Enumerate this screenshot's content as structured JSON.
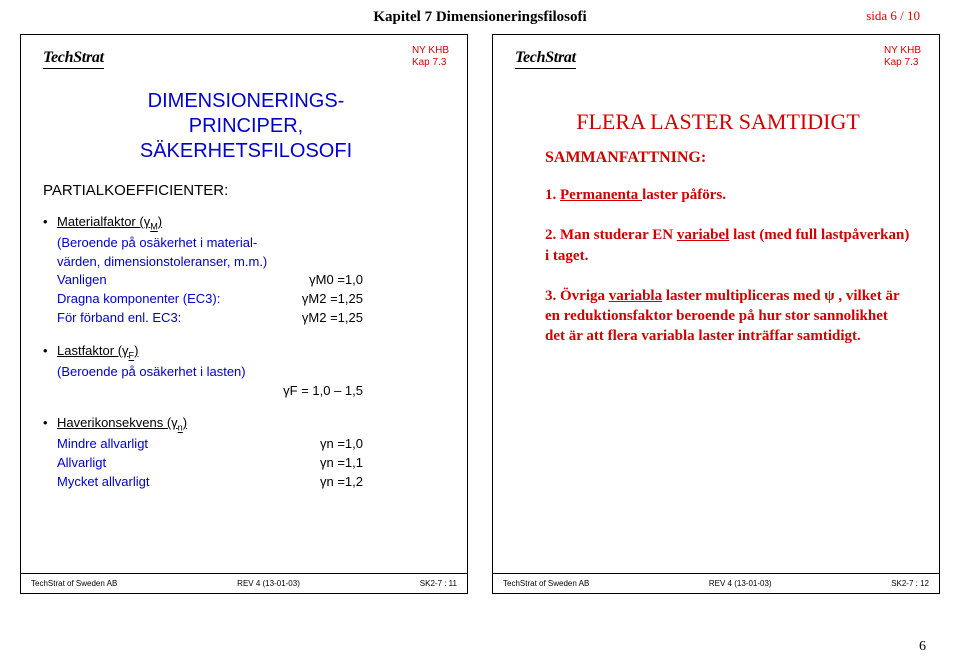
{
  "header": {
    "chapter": "Kapitel 7  Dimensioneringsfilosofi",
    "page": "sida 6 / 10"
  },
  "topRightLabel": {
    "line1": "NY KHB",
    "line2": "Kap 7.3"
  },
  "footer": {
    "left": "TechStrat of Sweden AB",
    "mid": "REV 4 (13-01-03)"
  },
  "logoText": "TechStrat",
  "slide1": {
    "title1": "DIMENSIONERINGS-",
    "title2": "PRINCIPER,",
    "title3": "SÄKERHETSFILOSOFI",
    "section": "PARTIALKOEFFICIENTER:",
    "b1_head": "Materialfaktor (γ",
    "b1_head_sub": "M",
    "b1_head_end": ")",
    "b1_l1": "(Beroende på osäkerhet i material-",
    "b1_l2": "värden, dimensionstoleranser, m.m.)",
    "b1_r1_label": "Vanligen",
    "b1_r1_val": "γM0 =1,0",
    "b1_r2_label": "Dragna komponenter (EC3):",
    "b1_r2_val": "γM2 =1,25",
    "b1_r3_label": "För förband enl. EC3:",
    "b1_r3_val": "γM2 =1,25",
    "b2_head": "Lastfaktor (γ",
    "b2_head_sub": "F",
    "b2_head_end": ")",
    "b2_l1": "(Beroende på osäkerhet i lasten)",
    "b2_r1_val": "γF = 1,0 – 1,5",
    "b3_head": "Haverikonsekvens  (γ",
    "b3_head_sub": "n",
    "b3_head_end": ")",
    "b3_r1_label": "Mindre allvarligt",
    "b3_r1_val": "γn =1,0",
    "b3_r2_label": "Allvarligt",
    "b3_r2_val": "γn =1,1",
    "b3_r3_label": "Mycket allvarligt",
    "b3_r3_val": "γn =1,2",
    "footerRight": "SK2-7 : 11"
  },
  "slide2": {
    "title": "FLERA  LASTER  SAMTIDIGT",
    "subtitle": "SAMMANFATTNING:",
    "n1_a": "1. ",
    "n1_b": "Permanenta ",
    "n1_c": "laster påförs.",
    "n2_a": "2. Man studerar EN ",
    "n2_b": "variabel",
    "n2_c": " last (med full lastpåverkan) i taget.",
    "n3_a": "3. Övriga ",
    "n3_b": "variabla",
    "n3_c": " laster multipliceras med  ψ , vilket är en reduktionsfaktor  beroende på hur stor sannolikhet det är att flera variabla laster inträffar samtidigt.",
    "footerRight": "SK2-7 : 12"
  },
  "bottomPage": "6"
}
